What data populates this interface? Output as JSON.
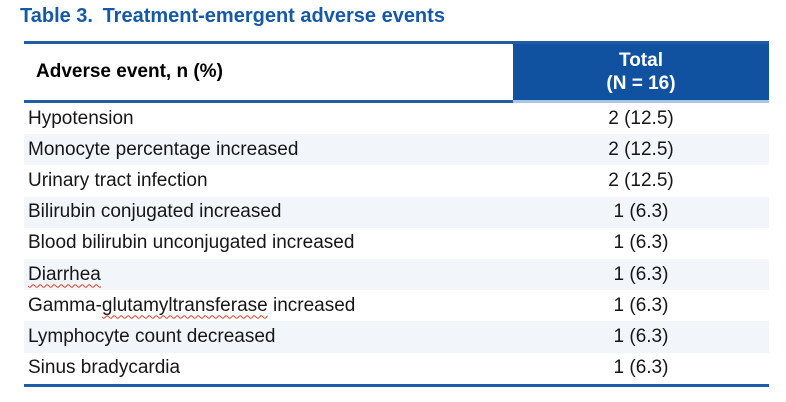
{
  "title": {
    "label": "Table 3.",
    "caption": "Treatment-emergent adverse events"
  },
  "table": {
    "header": {
      "event": "Adverse event, n (%)",
      "total_line1": "Total",
      "total_line2": "(N = 16)"
    },
    "rows": [
      {
        "event": "Hypotension",
        "value": "2 (12.5)"
      },
      {
        "event": "Monocyte percentage increased",
        "value": "2 (12.5)"
      },
      {
        "event": "Urinary tract infection",
        "value": "2 (12.5)"
      },
      {
        "event": "Bilirubin conjugated increased",
        "value": "1 (6.3)"
      },
      {
        "event": "Blood bilirubin unconjugated increased",
        "value": "1 (6.3)"
      },
      {
        "event": "Diarrhea",
        "value": "1 (6.3)",
        "misspelled_word": "Diarrhea"
      },
      {
        "event": "Gamma-glutamyltransferase increased",
        "value": "1 (6.3)",
        "event_parts": [
          "Gamma-",
          "glutamyltransferase",
          " increased"
        ],
        "misspelled_word": "glutamyltransferase"
      },
      {
        "event": "Lymphocyte count decreased",
        "value": "1 (6.3)"
      },
      {
        "event": "Sinus bradycardia",
        "value": "1 (6.3)"
      }
    ]
  },
  "colors": {
    "title_blue": "#1659a8",
    "header_fill_blue": "#1152a0",
    "border_blue": "#1e5ca6",
    "header_bottom_edge_light": "#a9c6e3",
    "row_stripe": "#f2f6fb",
    "spellcheck_red": "#e13c2b",
    "header_text_white": "#ffffff",
    "body_text": "#161616"
  }
}
